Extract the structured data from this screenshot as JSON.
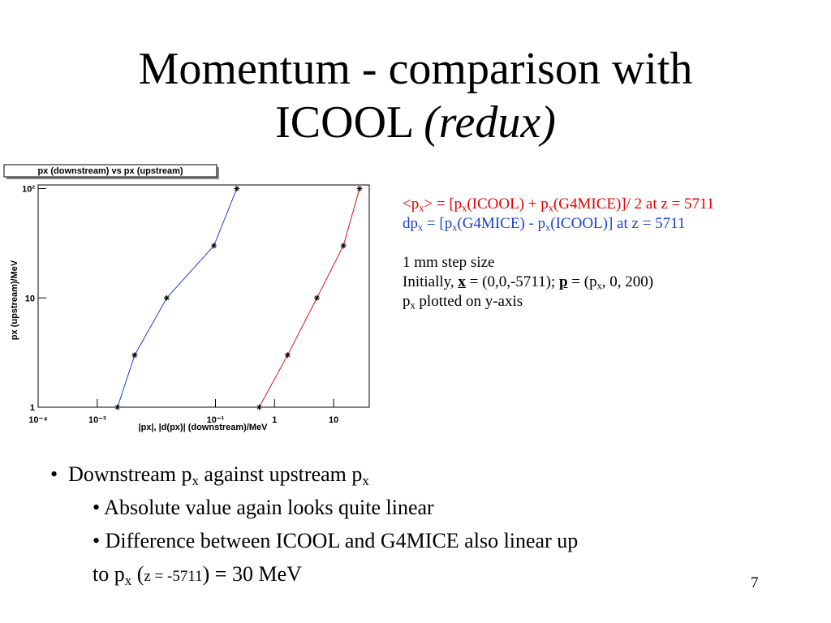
{
  "slide": {
    "title": [
      "Momentum - comparison with",
      "ICOOL",
      "(redux)"
    ],
    "notes": [
      [
        "<p",
        "x",
        "> = [p",
        "x",
        "(ICOOL) + p",
        "x",
        "(G4MICE)]/ 2 at z = 5711"
      ],
      [
        "dp",
        "x",
        " = [p",
        "x",
        "(G4MICE) - p",
        "x",
        "(ICOOL)] at z = 5711"
      ],
      [
        "1 mm step size"
      ],
      [
        "Initially, ",
        "x",
        " = (0,0,-5711); ",
        "p",
        " = (p",
        "x",
        ", 0, 200)"
      ],
      [
        "p",
        "x",
        " plotted on y-axis"
      ]
    ],
    "bullets": [
      [
        "Downstream p",
        "x",
        " against upstream p",
        "x"
      ],
      [
        "Absolute value again looks quite linear"
      ],
      [
        "Difference between ICOOL and G4MICE also linear up"
      ],
      [
        "to p",
        "x",
        " (",
        "z = -5711",
        ") = 30 MeV"
      ]
    ],
    "page_number": "7"
  },
  "chart_data": {
    "type": "line",
    "title": "px (downstream) vs px (upstream)",
    "x_label": "|px|, |d(px)| (downstream)/MeV",
    "y_label": "px (upstream)/MeV",
    "log_x": true,
    "log_y": true,
    "xlim": [
      0.0001,
      40
    ],
    "ylim": [
      1,
      108
    ],
    "xticks": [
      {
        "value": 0.0001,
        "label": "10⁻⁴"
      },
      {
        "value": 0.001,
        "label": "10⁻³"
      },
      {
        "value": 0.1,
        "label": "10⁻¹"
      },
      1,
      10
    ],
    "yticks": [
      1,
      10,
      {
        "value": 100,
        "label": "10²"
      }
    ],
    "series": [
      {
        "color": "#1f3fd0",
        "x": [
          0.0022,
          0.0043,
          0.015,
          0.094,
          0.23
        ],
        "values": [
          1,
          3,
          10,
          30,
          100
        ]
      },
      {
        "color": "#e01010",
        "x": [
          0.55,
          1.66,
          5.2,
          14.6,
          27.4
        ],
        "values": [
          1,
          3,
          10,
          30,
          100
        ]
      }
    ]
  }
}
